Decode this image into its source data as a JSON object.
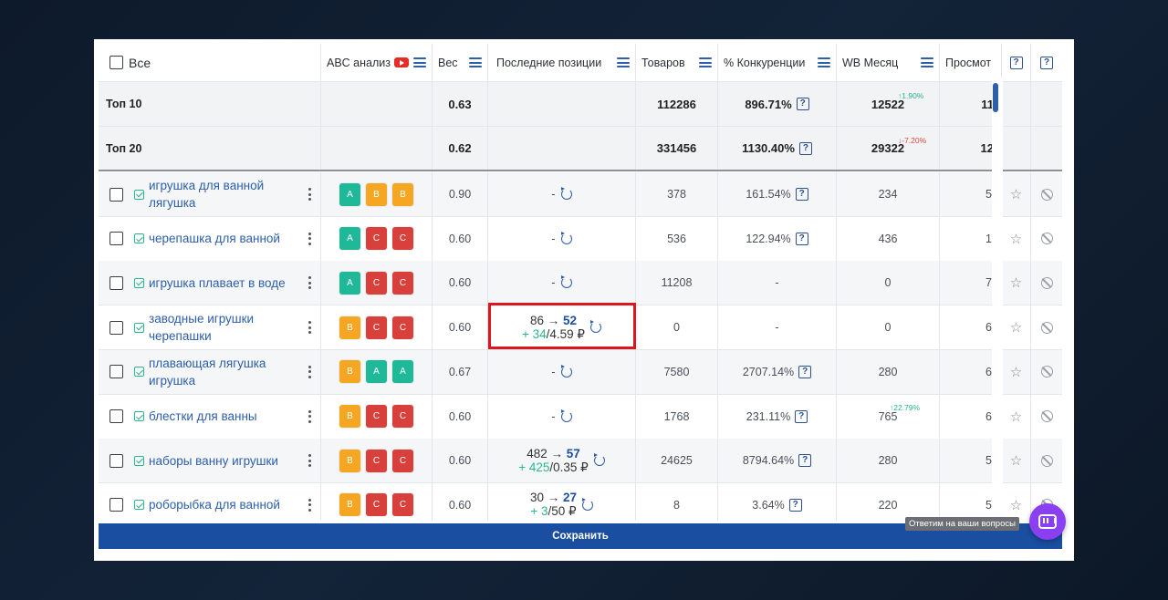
{
  "header": {
    "all_label": "Все",
    "abc_label": "ABC анализ",
    "weight_label": "Вес",
    "positions_label": "Последние позиции",
    "products_label": "Товаров",
    "competition_label": "% Конкуренции",
    "wb_month_label": "WB Месяц",
    "views_label": "Просмот",
    "help_glyph": "?"
  },
  "summary": [
    {
      "label": "Топ 10",
      "weight": "0.63",
      "products": "112286",
      "competition": "896.71%",
      "wb_month": "12522",
      "trend": "↑1.90%",
      "trend_dir": "up",
      "views": "11"
    },
    {
      "label": "Топ 20",
      "weight": "0.62",
      "products": "331456",
      "competition": "1130.40%",
      "wb_month": "29322",
      "trend": "↓-7.20%",
      "trend_dir": "down",
      "views": "12"
    }
  ],
  "rows": [
    {
      "keyword": "игрушка для ванной лягушка",
      "abc": [
        "A",
        "B",
        "B"
      ],
      "weight": "0.90",
      "pos_empty": "-",
      "products": "378",
      "competition": "161.54%",
      "has_q": true,
      "wb_month": "234",
      "views": "5",
      "alt": true
    },
    {
      "keyword": "черепашка для ванной",
      "abc": [
        "A",
        "C",
        "C"
      ],
      "weight": "0.60",
      "pos_empty": "-",
      "products": "536",
      "competition": "122.94%",
      "has_q": true,
      "wb_month": "436",
      "views": "1",
      "alt": false
    },
    {
      "keyword": "игрушка плавает в воде",
      "abc": [
        "A",
        "C",
        "C"
      ],
      "weight": "0.60",
      "pos_empty": "-",
      "products": "11208",
      "competition": "-",
      "has_q": false,
      "wb_month": "0",
      "views": "7",
      "alt": true
    },
    {
      "keyword": "заводные игрушки черепашки",
      "abc": [
        "B",
        "C",
        "C"
      ],
      "weight": "0.60",
      "pos_from": "86",
      "pos_to": "52",
      "pos_delta": "+ 34",
      "pos_price": "/4.59 ₽",
      "products": "0",
      "competition": "-",
      "has_q": false,
      "wb_month": "0",
      "views": "6",
      "alt": false
    },
    {
      "keyword": "плавающая лягушка игрушка",
      "abc": [
        "B",
        "A",
        "A"
      ],
      "weight": "0.67",
      "pos_empty": "-",
      "products": "7580",
      "competition": "2707.14%",
      "has_q": true,
      "wb_month": "280",
      "views": "6",
      "alt": true
    },
    {
      "keyword": "блестки для ванны",
      "abc": [
        "B",
        "C",
        "C"
      ],
      "weight": "0.60",
      "pos_empty": "-",
      "products": "1768",
      "competition": "231.11%",
      "has_q": true,
      "wb_month": "765",
      "wb_trend": "↑22.79%",
      "views": "6",
      "alt": false
    },
    {
      "keyword": "наборы ванну игрушки",
      "abc": [
        "B",
        "C",
        "C"
      ],
      "weight": "0.60",
      "pos_from": "482",
      "pos_to": "57",
      "pos_delta": "+ 425",
      "pos_price": "/0.35 ₽",
      "products": "24625",
      "competition": "8794.64%",
      "has_q": true,
      "wb_month": "280",
      "views": "5",
      "alt": true
    },
    {
      "keyword": "роборыбка для ванной",
      "abc": [
        "B",
        "C",
        "C"
      ],
      "weight": "0.60",
      "pos_from": "30",
      "pos_to": "27",
      "pos_delta": "+ 3",
      "pos_price": "/50 ₽",
      "products": "8",
      "competition": "3.64%",
      "has_q": true,
      "wb_month": "220",
      "views": "5",
      "alt": false
    }
  ],
  "arrow_glyph": "→",
  "star_glyph": "☆",
  "save_label": "Сохранить",
  "tooltip": "Ответим на ваши вопросы",
  "colors": {
    "accent": "#1a4ea0",
    "badge_a": "#1fb99a",
    "badge_b": "#f5a623",
    "badge_c": "#d8413b",
    "highlight": "#e0141b",
    "chat": "#8a3ff0"
  }
}
